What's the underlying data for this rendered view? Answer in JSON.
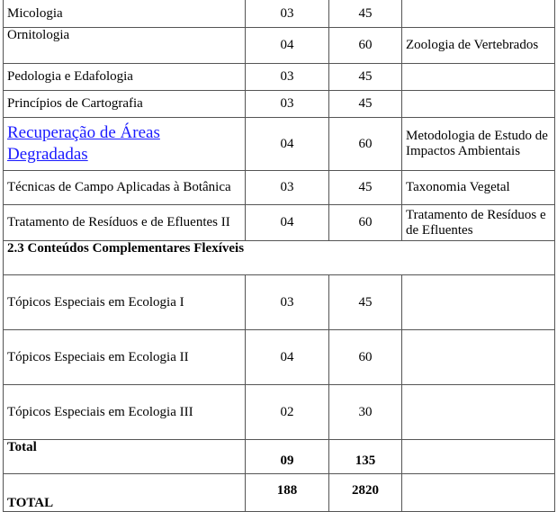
{
  "rows": [
    {
      "name": "Micologia",
      "credits": "03",
      "hours": "45",
      "prereq": ""
    },
    {
      "name": "Ornitologia",
      "credits": "04",
      "hours": "60",
      "prereq": "Zoologia de Vertebrados"
    },
    {
      "name": "Pedologia e Edafologia",
      "credits": "03",
      "hours": "45",
      "prereq": ""
    },
    {
      "name": "Princípios de Cartografia",
      "credits": "03",
      "hours": "45",
      "prereq": ""
    },
    {
      "name": "Recuperação de Áreas Degradadas",
      "credits": "04",
      "hours": "60",
      "prereq": "Metodologia de Estudo de Impactos Ambientais"
    },
    {
      "name": "Técnicas de Campo Aplicadas à Botânica",
      "credits": "03",
      "hours": "45",
      "prereq": "Taxonomia Vegetal"
    },
    {
      "name": "Tratamento de Resíduos e de Efluentes II",
      "credits": "04",
      "hours": "60",
      "prereq": "Tratamento de Resíduos e de Efluentes"
    }
  ],
  "section": "2.3  Conteúdos Complementares Flexíveis",
  "flex_rows": [
    {
      "name": "Tópicos Especiais em Ecologia I",
      "credits": "03",
      "hours": "45",
      "prereq": ""
    },
    {
      "name": "Tópicos Especiais em Ecologia II",
      "credits": "04",
      "hours": "60",
      "prereq": ""
    },
    {
      "name": "Tópicos Especiais em Ecologia III",
      "credits": "02",
      "hours": "30",
      "prereq": ""
    }
  ],
  "total": {
    "label": "Total",
    "credits": "09",
    "hours": "135"
  },
  "grand_total": {
    "label": "TOTAL",
    "credits": "188",
    "hours": "2820"
  }
}
